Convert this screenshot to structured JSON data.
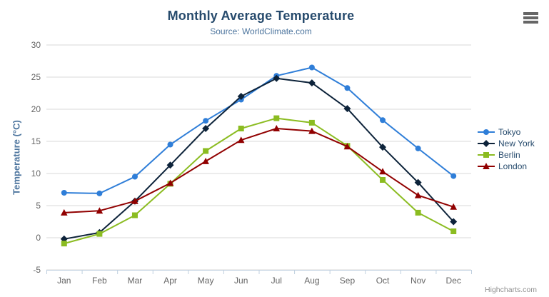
{
  "chart_data": {
    "type": "line",
    "title": "Monthly Average Temperature",
    "subtitle": "Source: WorldClimate.com",
    "categories": [
      "Jan",
      "Feb",
      "Mar",
      "Apr",
      "May",
      "Jun",
      "Jul",
      "Aug",
      "Sep",
      "Oct",
      "Nov",
      "Dec"
    ],
    "series": [
      {
        "name": "Tokyo",
        "color": "#2f7ed8",
        "marker": "circle",
        "values": [
          7.0,
          6.9,
          9.5,
          14.5,
          18.2,
          21.5,
          25.2,
          26.5,
          23.3,
          18.3,
          13.9,
          9.6
        ]
      },
      {
        "name": "New York",
        "color": "#0d233a",
        "marker": "diamond",
        "values": [
          -0.2,
          0.8,
          5.7,
          11.3,
          17.0,
          22.0,
          24.8,
          24.1,
          20.1,
          14.1,
          8.6,
          2.5
        ]
      },
      {
        "name": "Berlin",
        "color": "#8bbc21",
        "marker": "square",
        "values": [
          -0.9,
          0.6,
          3.5,
          8.4,
          13.5,
          17.0,
          18.6,
          17.9,
          14.3,
          9.0,
          3.9,
          1.0
        ]
      },
      {
        "name": "London",
        "color": "#910000",
        "marker": "triangle",
        "values": [
          3.9,
          4.2,
          5.7,
          8.5,
          11.9,
          15.2,
          17.0,
          16.6,
          14.2,
          10.3,
          6.6,
          4.8
        ]
      }
    ],
    "xlabel": "",
    "ylabel": "Temperature (°C)",
    "ylim": [
      -5,
      30
    ],
    "ytick_interval": 5,
    "grid": true,
    "legend_position": "right"
  },
  "credits": {
    "label": "Highcharts.com"
  },
  "icons": {
    "context_menu": "hamburger-icon"
  },
  "colors": {
    "title": "#274b6d",
    "subtitle": "#4d759e",
    "axis_title": "#4d759e",
    "tick_label": "#666666",
    "grid": "#d8d8d8",
    "axis_line": "#c0d0e0",
    "legend_text": "#274b6d",
    "credits": "#909090",
    "menu_icon": "#666666",
    "background": "#ffffff"
  }
}
